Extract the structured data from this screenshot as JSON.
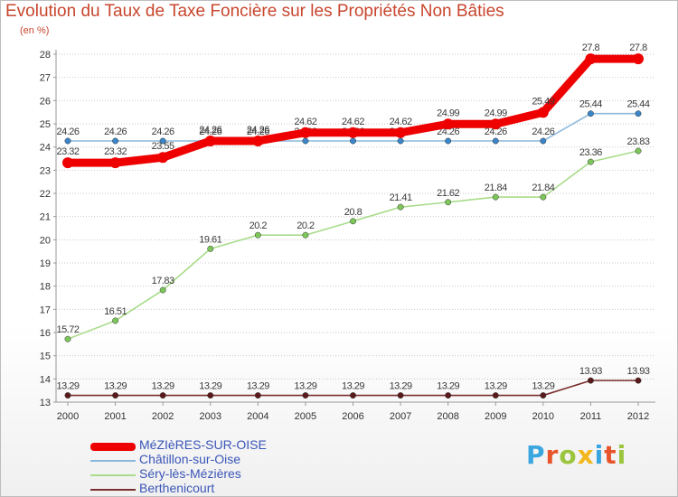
{
  "header": {
    "title": "Evolution du Taux de Taxe Foncière sur les Propriétés Non Bâties",
    "unit": "(en %)"
  },
  "logo": {
    "text": "Proxiti",
    "colors": [
      "#3aa6e0",
      "#e8552c",
      "#9bc53d",
      "#f3b71c",
      "#3aa6e0",
      "#e8552c",
      "#9bc53d"
    ]
  },
  "chart_data": {
    "type": "line",
    "title": "Evolution du Taux de Taxe Foncière sur les Propriétés Non Bâties",
    "ylabel": "(en %)",
    "xlabel": "",
    "ylim": [
      13,
      28
    ],
    "y_ticks": [
      13,
      14,
      15,
      16,
      17,
      18,
      19,
      20,
      21,
      22,
      23,
      24,
      25,
      26,
      27,
      28
    ],
    "categories": [
      "2000",
      "2001",
      "2002",
      "2003",
      "2004",
      "2005",
      "2006",
      "2007",
      "2008",
      "2009",
      "2010",
      "2011",
      "2012"
    ],
    "grid": "horizontal",
    "legend_position": "bottom-left",
    "series": [
      {
        "name": "Berthenicourt",
        "color": "#7b2f2f",
        "marker": "#5a1a1a",
        "style": "thin",
        "values": [
          13.29,
          13.29,
          13.29,
          13.29,
          13.29,
          13.29,
          13.29,
          13.29,
          13.29,
          13.29,
          13.29,
          13.93,
          13.93
        ],
        "labels": [
          "13.29",
          "13.29",
          "13.29",
          "13.29",
          "13.29",
          "13.29",
          "13.29",
          "13.29",
          "13.29",
          "13.29",
          "13.29",
          "13.93",
          "13.93"
        ]
      },
      {
        "name": "Séry-lès-Mézières",
        "color": "#a8dc8a",
        "marker": "#7cc65a",
        "style": "thin",
        "values": [
          15.72,
          16.51,
          17.83,
          19.61,
          20.2,
          20.2,
          20.8,
          21.41,
          21.62,
          21.84,
          21.84,
          23.36,
          23.83
        ],
        "labels": [
          "15.72",
          "16.51",
          "17.83",
          "19.61",
          "20.2",
          "20.2",
          "20.8",
          "21.41",
          "21.62",
          "21.84",
          "21.84",
          "23.36",
          "23.83"
        ]
      },
      {
        "name": "Châtillon-sur-Oise",
        "color": "#8cb8dc",
        "marker": "#3a86c8",
        "style": "thin",
        "values": [
          24.26,
          24.26,
          24.26,
          24.26,
          24.26,
          24.26,
          24.26,
          24.26,
          24.26,
          24.26,
          24.26,
          25.44,
          25.44
        ],
        "labels": [
          "24.26",
          "24.26",
          "24.26",
          "24.26",
          "24.26",
          "24.26",
          "24.26",
          "24.26",
          "24.26",
          "24.26",
          "24.26",
          "25.44",
          "25.44"
        ]
      },
      {
        "name": "MéZIèRES-SUR-OISE",
        "color": "#ee0000",
        "marker": "#ee0000",
        "style": "thick",
        "values": [
          23.32,
          23.32,
          23.55,
          24.26,
          24.26,
          24.62,
          24.62,
          24.62,
          24.99,
          24.99,
          25.49,
          27.8,
          27.8
        ],
        "labels": [
          "23.32",
          "23.32",
          "23.55",
          "24.26",
          "24.26",
          "24.62",
          "24.62",
          "24.62",
          "24.99",
          "24.99",
          "25.49",
          "27.8",
          "27.8"
        ]
      }
    ]
  },
  "legend": {
    "items": [
      {
        "label": "MéZIèRES-SUR-OISE",
        "color": "#ee0000",
        "thickness": 9
      },
      {
        "label": "Châtillon-sur-Oise",
        "color": "#8cb8dc",
        "thickness": 2
      },
      {
        "label": "Séry-lès-Mézières",
        "color": "#a8dc8a",
        "thickness": 2
      },
      {
        "label": "Berthenicourt",
        "color": "#7b2f2f",
        "thickness": 2
      }
    ]
  }
}
